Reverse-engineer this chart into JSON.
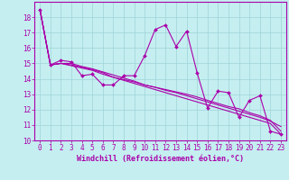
{
  "xlabel": "Windchill (Refroidissement éolien,°C)",
  "background_color": "#c5eef0",
  "grid_color": "#9dd4d8",
  "line_color": "#aa00aa",
  "x_values": [
    0,
    1,
    2,
    3,
    4,
    5,
    6,
    7,
    8,
    9,
    10,
    11,
    12,
    13,
    14,
    15,
    16,
    17,
    18,
    19,
    20,
    21,
    22,
    23
  ],
  "series": [
    [
      18.5,
      14.9,
      15.2,
      15.1,
      14.2,
      14.3,
      13.6,
      13.6,
      14.2,
      14.2,
      15.5,
      17.2,
      17.5,
      16.1,
      17.1,
      14.4,
      12.1,
      13.2,
      13.1,
      11.5,
      12.6,
      12.9,
      10.6,
      10.4
    ],
    [
      18.5,
      14.9,
      15.0,
      14.85,
      14.7,
      14.55,
      14.3,
      14.1,
      13.9,
      13.7,
      13.5,
      13.3,
      13.1,
      12.9,
      12.7,
      12.5,
      12.3,
      12.1,
      11.9,
      11.7,
      11.5,
      11.3,
      11.1,
      10.4
    ],
    [
      18.5,
      14.9,
      15.0,
      14.9,
      14.75,
      14.6,
      14.4,
      14.1,
      13.95,
      13.8,
      13.6,
      13.45,
      13.3,
      13.15,
      13.0,
      12.82,
      12.6,
      12.4,
      12.2,
      12.05,
      11.8,
      11.6,
      11.3,
      10.6
    ],
    [
      18.5,
      14.9,
      15.0,
      15.0,
      14.8,
      14.65,
      14.45,
      14.25,
      14.05,
      13.85,
      13.6,
      13.45,
      13.25,
      13.1,
      12.9,
      12.7,
      12.5,
      12.3,
      12.1,
      11.9,
      11.7,
      11.5,
      11.25,
      10.9
    ]
  ],
  "markers_on_series": 0,
  "ylim": [
    10,
    19
  ],
  "xlim": [
    -0.5,
    23.5
  ],
  "yticks": [
    10,
    11,
    12,
    13,
    14,
    15,
    16,
    17,
    18
  ],
  "xticks": [
    0,
    1,
    2,
    3,
    4,
    5,
    6,
    7,
    8,
    9,
    10,
    11,
    12,
    13,
    14,
    15,
    16,
    17,
    18,
    19,
    20,
    21,
    22,
    23
  ],
  "tick_fontsize": 5.5,
  "label_fontsize": 6.0,
  "marker": "D",
  "marker_size": 2.0,
  "linewidth": 0.8
}
